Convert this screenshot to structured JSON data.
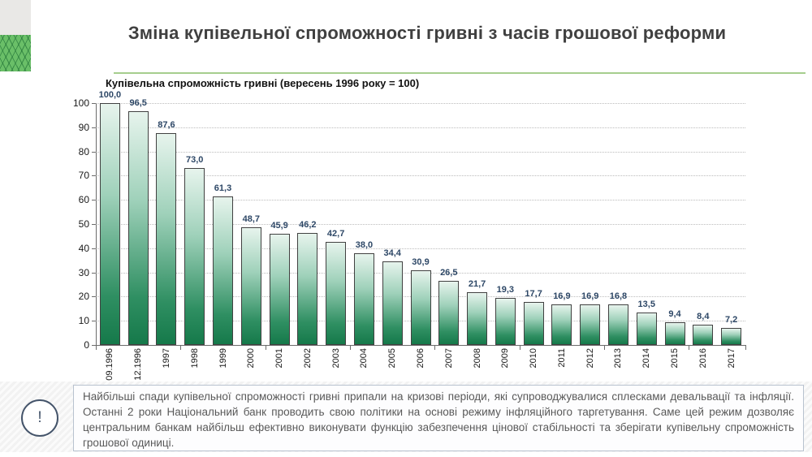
{
  "slide": {
    "title": "Зміна купівельної спроможності гривні з часів грошової реформи",
    "accent_line_color": "#a6ce8e",
    "corner_green_color": "#6abf68",
    "corner_gray_color": "#e9e8e6"
  },
  "chart_data": {
    "type": "bar",
    "title": "Купівельна спроможність гривні (вересень 1996 року = 100)",
    "categories": [
      "09.1996",
      "12.1996",
      "1997",
      "1998",
      "1999",
      "2000",
      "2001",
      "2002",
      "2003",
      "2004",
      "2005",
      "2006",
      "2007",
      "2008",
      "2009",
      "2010",
      "2011",
      "2012",
      "2013",
      "2014",
      "2015",
      "2016",
      "2017"
    ],
    "values": [
      100.0,
      96.5,
      87.6,
      73.0,
      61.3,
      48.7,
      45.9,
      46.2,
      42.7,
      38.0,
      34.4,
      30.9,
      26.5,
      21.7,
      19.3,
      17.7,
      16.9,
      16.9,
      16.8,
      13.5,
      9.4,
      8.4,
      7.2
    ],
    "value_labels": [
      "100,0",
      "96,5",
      "87,6",
      "73,0",
      "61,3",
      "48,7",
      "45,9",
      "46,2",
      "42,7",
      "38,0",
      "34,4",
      "30,9",
      "26,5",
      "21,7",
      "19,3",
      "17,7",
      "16,9",
      "16,9",
      "16,8",
      "13,5",
      "9,4",
      "8,4",
      "7,2"
    ],
    "xlabel": "",
    "ylabel": "",
    "ylim": [
      0,
      100
    ],
    "yticks": [
      0,
      10,
      20,
      30,
      40,
      50,
      60,
      70,
      80,
      90,
      100
    ],
    "grid": "horizontal-dotted",
    "legend": "none",
    "bar_gradient_top": "#e7f4ed",
    "bar_gradient_bottom": "#15794a",
    "bar_border_color": "#414141",
    "value_label_color": "#2d4766"
  },
  "note": {
    "icon": "!",
    "text": "Найбільші спади купівельної спроможності гривні припали  на кризові періоди, які супроводжувалися сплесками  девальвації та інфляції. Останні 2 роки Національний  банк проводить свою політики  на основі режиму інфляційного таргетування. Саме цей режим дозволяє центральним банкам  найбільш ефективно виконувати функцію забезпечення цінової стабільності та зберігати купівельну  спроможність грошової одиниці."
  }
}
